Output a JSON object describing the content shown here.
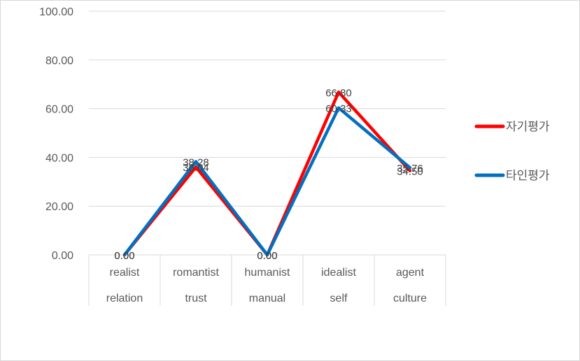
{
  "chart_data": {
    "type": "line",
    "title": "",
    "xlabel": "",
    "ylabel": "",
    "ylim": [
      0,
      100
    ],
    "yticks": [
      "0.00",
      "20.00",
      "40.00",
      "60.00",
      "80.00",
      "100.00"
    ],
    "grid": true,
    "legend_position": "right",
    "categories": [
      {
        "top": "realist",
        "bottom": "relation"
      },
      {
        "top": "romantist",
        "bottom": "trust"
      },
      {
        "top": "humanist",
        "bottom": "manual"
      },
      {
        "top": "idealist",
        "bottom": "self"
      },
      {
        "top": "agent",
        "bottom": "culture"
      }
    ],
    "series": [
      {
        "name": "자기평가",
        "color": "#ff0000",
        "values": [
          0.0,
          36.04,
          0.0,
          66.8,
          34.5
        ],
        "labels": [
          "0.00",
          "36.04",
          "0.00",
          "66.80",
          "34.50"
        ]
      },
      {
        "name": "타인평가",
        "color": "#0070c0",
        "values": [
          0.0,
          38.28,
          0.0,
          60.33,
          35.76
        ],
        "labels": [
          "0.00",
          "38.28",
          "0.00",
          "60.33",
          "35.76"
        ]
      }
    ]
  }
}
